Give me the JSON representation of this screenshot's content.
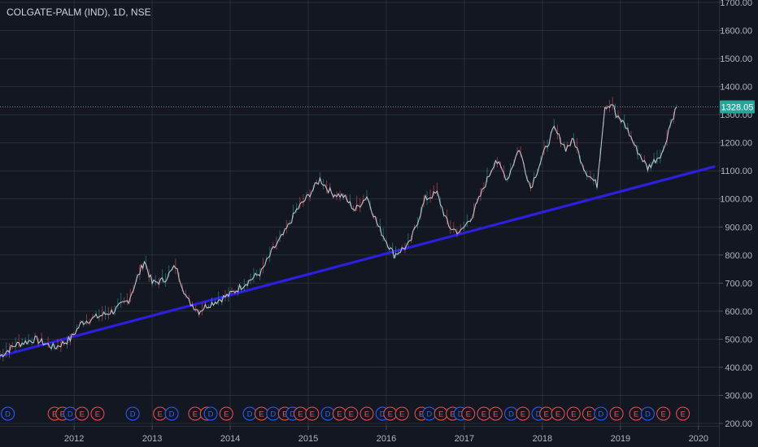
{
  "chart_data": {
    "type": "line",
    "title": "COLGATE-PALM (IND), 1D, NSE",
    "x_axis": {
      "tick_labels": [
        "2012",
        "2013",
        "2014",
        "2015",
        "2016",
        "2017",
        "2018",
        "2019",
        "2020"
      ],
      "range": [
        2011.05,
        2020.2
      ]
    },
    "y_axis": {
      "tick_labels": [
        "1700.00",
        "1600.00",
        "1500.00",
        "1400.00",
        "1300.00",
        "1200.00",
        "1100.00",
        "1000.00",
        "900.00",
        "800.00",
        "700.00",
        "600.00",
        "500.00",
        "400.00",
        "300.00",
        "200.00"
      ],
      "range": [
        200,
        1700
      ],
      "position": "right"
    },
    "grid": true,
    "series": [
      {
        "color": "#cfd3dc",
        "x": [
          2011.05,
          2011.25,
          2011.5,
          2011.75,
          2011.95,
          2012.1,
          2012.3,
          2012.5,
          2012.7,
          2012.9,
          2013.0,
          2013.15,
          2013.3,
          2013.45,
          2013.6,
          2013.7,
          2013.85,
          2014.0,
          2014.2,
          2014.4,
          2014.55,
          2014.7,
          2014.85,
          2015.0,
          2015.15,
          2015.3,
          2015.45,
          2015.6,
          2015.75,
          2015.9,
          2016.1,
          2016.3,
          2016.4,
          2016.5,
          2016.65,
          2016.8,
          2016.95,
          2017.1,
          2017.25,
          2017.4,
          2017.55,
          2017.7,
          2017.85,
          2018.0,
          2018.15,
          2018.3,
          2018.4,
          2018.55,
          2018.7,
          2018.8,
          2018.9,
          2018.95,
          2019.05,
          2019.2,
          2019.35,
          2019.45,
          2019.55,
          2019.62,
          2019.72
        ],
        "y": [
          440,
          480,
          500,
          470,
          500,
          560,
          580,
          600,
          640,
          780,
          700,
          710,
          760,
          640,
          600,
          620,
          640,
          660,
          700,
          740,
          820,
          880,
          960,
          1010,
          1070,
          1020,
          1010,
          960,
          1010,
          900,
          800,
          840,
          920,
          1000,
          1020,
          900,
          880,
          940,
          1040,
          1140,
          1070,
          1180,
          1040,
          1150,
          1250,
          1180,
          1210,
          1100,
          1050,
          1330,
          1340,
          1290,
          1270,
          1180,
          1110,
          1140,
          1170,
          1250,
          1328.05
        ]
      }
    ],
    "trendline": {
      "color": "#2c1fe0",
      "x": [
        2011.05,
        2020.2
      ],
      "y": [
        440,
        1115
      ]
    },
    "current_price": {
      "label": "1328.05",
      "value": 1328.05,
      "color": "#26a69a"
    },
    "events": {
      "labels": [
        "D",
        "E",
        "E",
        "D",
        "E",
        "E",
        "D",
        "E",
        "D",
        "E",
        "E",
        "D",
        "E",
        "D",
        "E",
        "D",
        "E",
        "D",
        "E",
        "E",
        "D",
        "E",
        "E",
        "E",
        "D",
        "E",
        "E",
        "E",
        "D",
        "E",
        "E",
        "D",
        "E",
        "E",
        "E",
        "D",
        "E",
        "D",
        "E",
        "E",
        "E",
        "E",
        "D",
        "E",
        "E",
        "D",
        "E",
        "E"
      ],
      "x": [
        2011.15,
        2011.75,
        2011.85,
        2011.95,
        2012.1,
        2012.3,
        2012.75,
        2013.1,
        2013.25,
        2013.55,
        2013.7,
        2013.75,
        2013.95,
        2014.25,
        2014.4,
        2014.55,
        2014.7,
        2014.8,
        2014.9,
        2015.05,
        2015.25,
        2015.4,
        2015.55,
        2015.75,
        2015.95,
        2016.05,
        2016.2,
        2016.45,
        2016.55,
        2016.7,
        2016.85,
        2016.95,
        2017.05,
        2017.25,
        2017.4,
        2017.6,
        2017.75,
        2017.95,
        2018.05,
        2018.2,
        2018.4,
        2018.6,
        2018.75,
        2018.95,
        2019.2,
        2019.35,
        2019.55,
        2019.8
      ],
      "colors": {
        "D": "#2962ff",
        "E": "#ef5350"
      }
    }
  }
}
